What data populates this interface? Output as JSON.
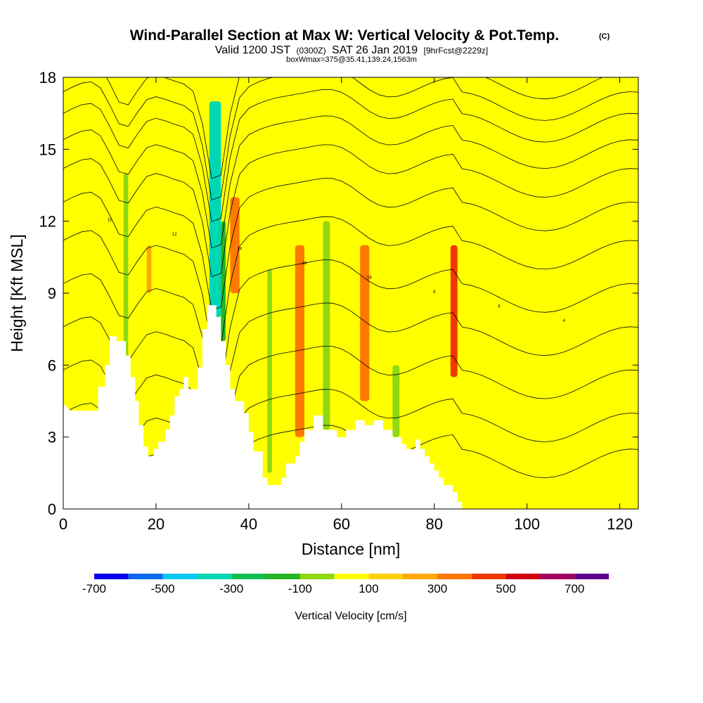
{
  "header": {
    "title": "Wind-Parallel Section at Max W: Vertical Velocity & Pot.Temp.",
    "copyright": "(C)",
    "valid_prefix": "Valid 1200 JST",
    "valid_utc": "(0300Z)",
    "valid_date": "SAT 26 Jan 2019",
    "forecast": "[9hrFcst@2229z]",
    "box_info": "boxWmax=375@35.41,139.24,1563m"
  },
  "chart_data": {
    "type": "heatmap",
    "title": "Wind-Parallel Section at Max W: Vertical Velocity & Pot.Temp.",
    "xlabel": "Distance [nm]",
    "ylabel": "Height [Kft MSL]",
    "xlim": [
      0,
      124
    ],
    "ylim": [
      0,
      18
    ],
    "x_ticks": [
      "0",
      "20",
      "40",
      "60",
      "80",
      "100",
      "120"
    ],
    "x_tick_values": [
      0,
      20,
      40,
      60,
      80,
      100,
      120
    ],
    "y_ticks": [
      "0",
      "3",
      "6",
      "9",
      "12",
      "15",
      "18"
    ],
    "y_tick_values": [
      0,
      3,
      6,
      9,
      12,
      15,
      18
    ],
    "terrain_kft": [
      [
        0,
        4.4
      ],
      [
        1.5,
        4.1
      ],
      [
        7.5,
        4.1
      ],
      [
        7.5,
        5.1
      ],
      [
        9,
        5.1
      ],
      [
        9,
        6.0
      ],
      [
        10,
        6.0
      ],
      [
        10,
        7.2
      ],
      [
        11.5,
        7.2
      ],
      [
        11.5,
        7.0
      ],
      [
        13.5,
        7.0
      ],
      [
        13.5,
        6.4
      ],
      [
        14.5,
        6.4
      ],
      [
        14.5,
        5.5
      ],
      [
        15.5,
        5.5
      ],
      [
        15.5,
        4.5
      ],
      [
        16.3,
        4.5
      ],
      [
        16.3,
        3.5
      ],
      [
        17.3,
        3.5
      ],
      [
        17.3,
        2.6
      ],
      [
        18.3,
        2.6
      ],
      [
        18.3,
        2.2
      ],
      [
        19.5,
        2.2
      ],
      [
        19.5,
        2.5
      ],
      [
        20.5,
        2.5
      ],
      [
        20.5,
        2.8
      ],
      [
        22,
        2.8
      ],
      [
        22,
        3.3
      ],
      [
        23,
        3.3
      ],
      [
        23,
        3.9
      ],
      [
        24,
        3.9
      ],
      [
        24,
        4.7
      ],
      [
        25,
        4.7
      ],
      [
        25,
        5.0
      ],
      [
        26,
        5.0
      ],
      [
        26,
        5.5
      ],
      [
        27,
        5.5
      ],
      [
        27,
        5.0
      ],
      [
        29,
        5.0
      ],
      [
        29,
        5.9
      ],
      [
        30,
        5.9
      ],
      [
        30,
        7.5
      ],
      [
        31,
        7.5
      ],
      [
        31,
        8.5
      ],
      [
        33,
        8.5
      ],
      [
        33,
        8.0
      ],
      [
        34,
        8.0
      ],
      [
        34,
        7.0
      ],
      [
        35,
        7.0
      ],
      [
        35,
        6.0
      ],
      [
        36,
        6.0
      ],
      [
        36,
        5.0
      ],
      [
        37,
        5.0
      ],
      [
        37,
        4.5
      ],
      [
        39,
        4.5
      ],
      [
        39,
        4.0
      ],
      [
        40,
        4.0
      ],
      [
        40,
        3.2
      ],
      [
        41,
        3.2
      ],
      [
        41,
        2.4
      ],
      [
        43,
        2.4
      ],
      [
        43,
        1.3
      ],
      [
        44,
        1.3
      ],
      [
        44,
        1.0
      ],
      [
        47,
        1.0
      ],
      [
        47,
        1.3
      ],
      [
        48,
        1.3
      ],
      [
        48,
        1.9
      ],
      [
        50,
        1.9
      ],
      [
        50,
        2.2
      ],
      [
        51,
        2.2
      ],
      [
        51,
        2.8
      ],
      [
        52,
        2.8
      ],
      [
        52,
        3.3
      ],
      [
        54,
        3.3
      ],
      [
        54,
        3.9
      ],
      [
        56,
        3.9
      ],
      [
        56,
        3.3
      ],
      [
        59,
        3.3
      ],
      [
        59,
        3.0
      ],
      [
        61,
        3.0
      ],
      [
        61,
        3.3
      ],
      [
        63,
        3.3
      ],
      [
        63,
        3.7
      ],
      [
        65,
        3.7
      ],
      [
        65,
        3.5
      ],
      [
        67,
        3.5
      ],
      [
        67,
        3.7
      ],
      [
        69,
        3.7
      ],
      [
        69,
        3.3
      ],
      [
        71,
        3.3
      ],
      [
        71,
        3.0
      ],
      [
        73,
        3.0
      ],
      [
        73,
        2.7
      ],
      [
        74,
        2.7
      ],
      [
        74,
        2.5
      ],
      [
        76,
        2.5
      ],
      [
        76,
        2.9
      ],
      [
        77,
        2.9
      ],
      [
        77,
        2.5
      ],
      [
        78,
        2.5
      ],
      [
        78,
        2.2
      ],
      [
        79,
        2.2
      ],
      [
        79,
        1.9
      ],
      [
        80,
        1.9
      ],
      [
        80,
        1.6
      ],
      [
        81,
        1.6
      ],
      [
        81,
        1.3
      ],
      [
        82,
        1.3
      ],
      [
        82,
        1.0
      ],
      [
        84,
        1.0
      ],
      [
        84,
        0.7
      ],
      [
        85,
        0.7
      ],
      [
        85,
        0.3
      ],
      [
        86,
        0.3
      ],
      [
        86,
        0
      ],
      [
        124,
        0
      ]
    ],
    "velocity_bands": [
      {
        "x": [
          13,
          14
        ],
        "y": [
          5.5,
          14
        ],
        "value": -200
      },
      {
        "x": [
          31.5,
          34
        ],
        "y": [
          8,
          17
        ],
        "value": -450
      },
      {
        "x": [
          34,
          35
        ],
        "y": [
          7,
          12
        ],
        "value": -300
      },
      {
        "x": [
          44,
          45
        ],
        "y": [
          1.5,
          10
        ],
        "value": -150
      },
      {
        "x": [
          56,
          57.5
        ],
        "y": [
          3.3,
          12
        ],
        "value": -150
      },
      {
        "x": [
          71,
          72.5
        ],
        "y": [
          3.0,
          6
        ],
        "value": -150
      },
      {
        "x": [
          50,
          52
        ],
        "y": [
          3,
          11
        ],
        "value": 200
      },
      {
        "x": [
          64,
          66
        ],
        "y": [
          4.5,
          11
        ],
        "value": 200
      },
      {
        "x": [
          83.5,
          85
        ],
        "y": [
          5.5,
          11
        ],
        "value": 350
      },
      {
        "x": [
          36,
          38
        ],
        "y": [
          9,
          13
        ],
        "value": 200
      },
      {
        "x": [
          18,
          19
        ],
        "y": [
          9,
          11
        ],
        "value": 150
      }
    ],
    "theta_labels": [
      "10",
      "12",
      "14",
      "16",
      "18",
      "8",
      "6",
      "4"
    ],
    "colorbar": {
      "title": "Vertical Velocity [cm/s]",
      "labels": [
        "-700",
        "-500",
        "-300",
        "-100",
        "100",
        "300",
        "500",
        "700"
      ],
      "colors": [
        "#0a00f0",
        "#0a6af0",
        "#00c8f0",
        "#00d8b4",
        "#10c050",
        "#24b424",
        "#90d810",
        "#ffff00",
        "#ffd000",
        "#ffa800",
        "#ff7800",
        "#f03800",
        "#d00010",
        "#a00060",
        "#60008c"
      ]
    }
  }
}
